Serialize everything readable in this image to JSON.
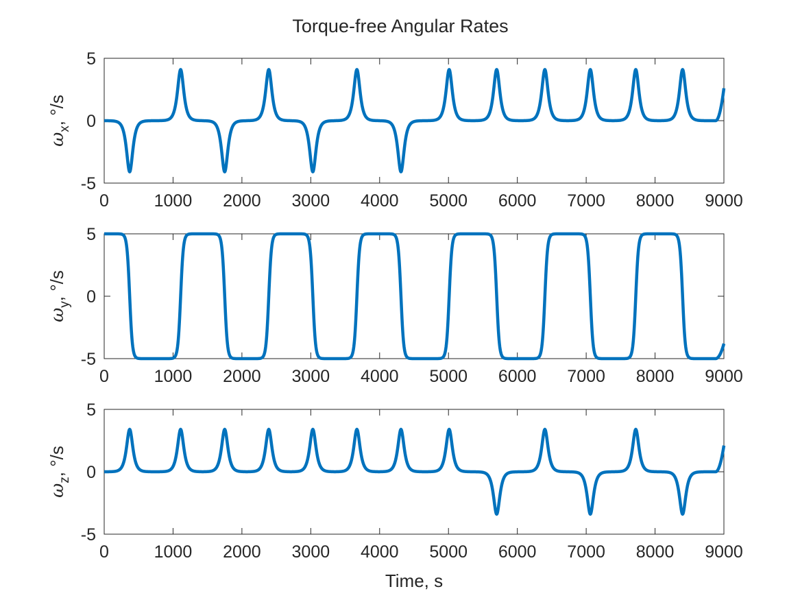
{
  "figure": {
    "title": "Torque-free Angular Rates"
  },
  "chart_data": [
    {
      "type": "line",
      "title": "",
      "xlabel": "",
      "ylabel": {
        "symbol": "ω",
        "subscript": "x",
        "unit": ", °/s"
      },
      "xlim": [
        0,
        9000
      ],
      "ylim": [
        -5,
        5
      ],
      "xticks": [
        "0",
        "1000",
        "2000",
        "3000",
        "4000",
        "5000",
        "6000",
        "7000",
        "8000",
        "9000"
      ],
      "yticks": [
        "-5",
        "0",
        "5"
      ],
      "grid": false,
      "color": "#0072BD",
      "series": [
        {
          "shape": "spikes",
          "baseline": 0,
          "width": 40,
          "x_end": 9000,
          "y_end": 2.6,
          "peaks": [
            {
              "x": 370,
              "y": -4.1
            },
            {
              "x": 1110,
              "y": 4.1
            },
            {
              "x": 1750,
              "y": -4.1
            },
            {
              "x": 2390,
              "y": 4.1
            },
            {
              "x": 3030,
              "y": -4.1
            },
            {
              "x": 3670,
              "y": 4.1
            },
            {
              "x": 4310,
              "y": -4.1
            },
            {
              "x": 5010,
              "y": 4.1
            },
            {
              "x": 5700,
              "y": 4.1
            },
            {
              "x": 6400,
              "y": 4.1
            },
            {
              "x": 7060,
              "y": 4.1
            },
            {
              "x": 7720,
              "y": 4.1
            },
            {
              "x": 8400,
              "y": 4.1
            }
          ]
        }
      ]
    },
    {
      "type": "line",
      "title": "",
      "xlabel": "",
      "ylabel": {
        "symbol": "ω",
        "subscript": "y",
        "unit": ", °/s"
      },
      "xlim": [
        0,
        9000
      ],
      "ylim": [
        -5,
        5
      ],
      "xticks": [
        "0",
        "1000",
        "2000",
        "3000",
        "4000",
        "5000",
        "6000",
        "7000",
        "8000",
        "9000"
      ],
      "yticks": [
        "-5",
        "0",
        "5"
      ],
      "grid": false,
      "color": "#0072BD",
      "series": [
        {
          "shape": "square",
          "amplitude": 5,
          "initial": 5,
          "edge_width": 40,
          "x_end": 9000,
          "y_end": -3.8,
          "transitions": [
            370,
            1110,
            1750,
            2390,
            3030,
            3670,
            4310,
            5010,
            5700,
            6400,
            7060,
            7720,
            8400
          ]
        }
      ]
    },
    {
      "type": "line",
      "title": "",
      "xlabel": "Time, s",
      "ylabel": {
        "symbol": "ω",
        "subscript": "z",
        "unit": ", °/s"
      },
      "xlim": [
        0,
        9000
      ],
      "ylim": [
        -5,
        5
      ],
      "xticks": [
        "0",
        "1000",
        "2000",
        "3000",
        "4000",
        "5000",
        "6000",
        "7000",
        "8000",
        "9000"
      ],
      "yticks": [
        "-5",
        "0",
        "5"
      ],
      "grid": false,
      "color": "#0072BD",
      "series": [
        {
          "shape": "spikes",
          "baseline": 0,
          "width": 40,
          "x_end": 9000,
          "y_end": 2.1,
          "peaks": [
            {
              "x": 370,
              "y": 3.4
            },
            {
              "x": 1110,
              "y": 3.4
            },
            {
              "x": 1750,
              "y": 3.4
            },
            {
              "x": 2390,
              "y": 3.4
            },
            {
              "x": 3030,
              "y": 3.4
            },
            {
              "x": 3670,
              "y": 3.4
            },
            {
              "x": 4310,
              "y": 3.4
            },
            {
              "x": 5010,
              "y": 3.4
            },
            {
              "x": 5700,
              "y": -3.4
            },
            {
              "x": 6400,
              "y": 3.4
            },
            {
              "x": 7060,
              "y": -3.4
            },
            {
              "x": 7720,
              "y": 3.4
            },
            {
              "x": 8400,
              "y": -3.4
            }
          ]
        }
      ]
    }
  ]
}
